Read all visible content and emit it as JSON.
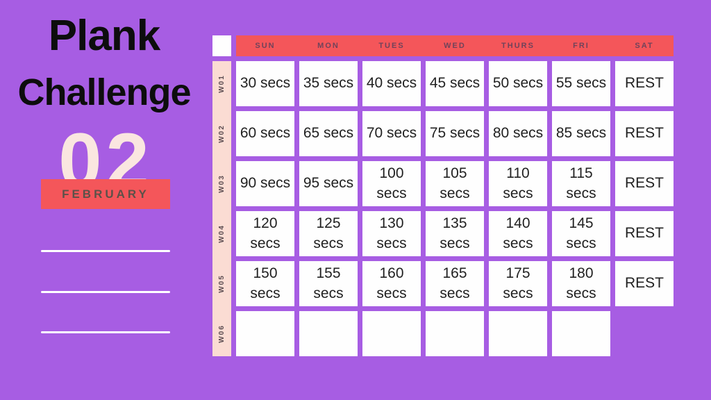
{
  "page": {
    "background_color": "#a75de3",
    "accent_color": "#f4565a",
    "label_column_color": "#fbdcd3",
    "month_number_color": "#fae6e0"
  },
  "left_panel": {
    "title_line1": "Plank",
    "title_line2": "Challenge",
    "month_number": "02",
    "month_label": "FEBRUARY"
  },
  "table": {
    "days": [
      "SUN",
      "MON",
      "TUES",
      "WED",
      "THURS",
      "FRI",
      "SAT"
    ],
    "weeks": [
      {
        "label": "W01",
        "cells": [
          "",
          "30 secs",
          "35 secs",
          "40 secs",
          "45 secs",
          "50 secs",
          "55 secs"
        ]
      },
      {
        "label": "W02",
        "cells": [
          "REST",
          "60 secs",
          "65 secs",
          "70 secs",
          "75 secs",
          "80 secs",
          "85 secs"
        ]
      },
      {
        "label": "W03",
        "cells": [
          "REST",
          "90 secs",
          "95 secs",
          "100 secs",
          "105 secs",
          "110 secs",
          "115 secs"
        ]
      },
      {
        "label": "W04",
        "cells": [
          "REST",
          "120 secs",
          "125 secs",
          "130 secs",
          "135 secs",
          "140 secs",
          "145 secs"
        ]
      },
      {
        "label": "W05",
        "cells": [
          "REST",
          "150 secs",
          "155 secs",
          "160 secs",
          "165 secs",
          "175 secs",
          "180 secs"
        ]
      },
      {
        "label": "W06",
        "cells": [
          "REST",
          "",
          "",
          "",
          "",
          "",
          ""
        ]
      }
    ]
  }
}
